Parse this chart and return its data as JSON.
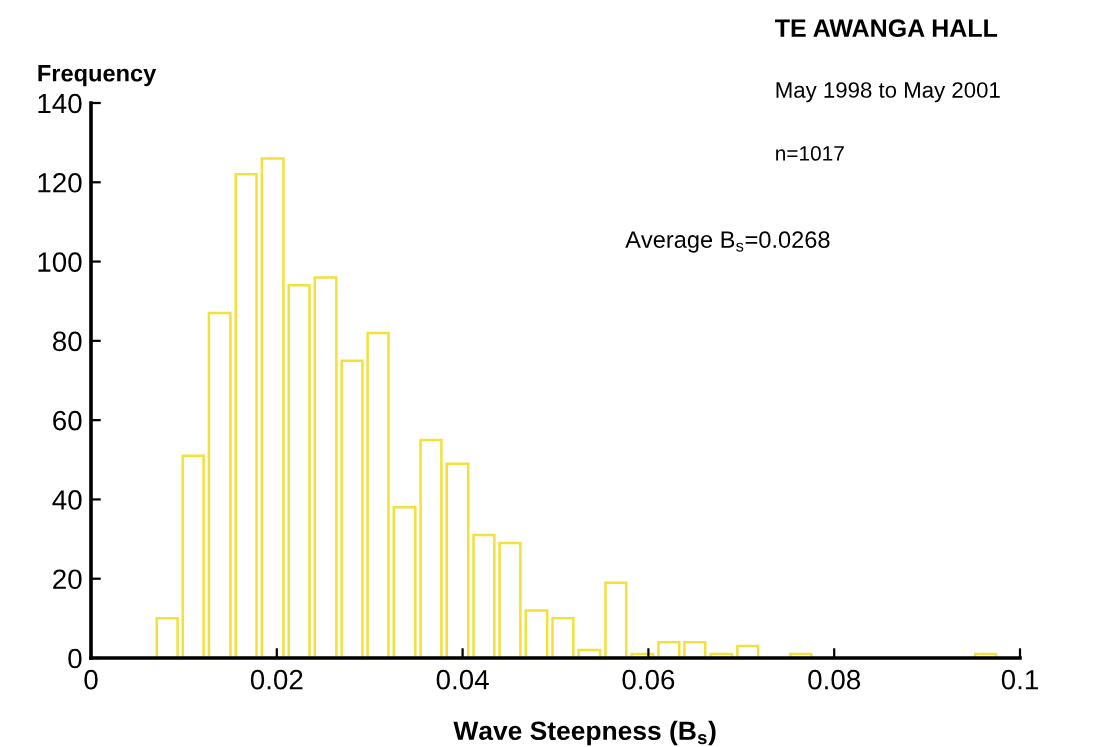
{
  "chart_data": {
    "type": "histogram",
    "title": "TE AWANGA HALL",
    "subtitle": "May 1998 to May 2001",
    "xlabel": "Wave Steepness (B$_{s}$)",
    "ylabel": "Frequency",
    "annotations": [
      "n=1017",
      "Average B$_{s}$=0.0268"
    ],
    "bins": [
      0.0068,
      0.0096,
      0.0124,
      0.0153,
      0.0181,
      0.021,
      0.0238,
      0.0267,
      0.0295,
      0.0323,
      0.0352,
      0.038,
      0.0409,
      0.0437,
      0.0465,
      0.0494,
      0.0522,
      0.0551,
      0.0579,
      0.0608,
      0.0636,
      0.0664,
      0.0693,
      0.0721,
      0.075,
      0.0778,
      0.0949,
      0.0977
    ],
    "values": [
      10,
      51,
      87,
      122,
      126,
      94,
      96,
      75,
      82,
      38,
      55,
      49,
      31,
      29,
      12,
      10,
      2,
      19,
      1,
      4,
      4,
      1,
      3,
      0,
      1,
      0,
      1
    ],
    "color": "#f2e13a",
    "xlim": [
      0,
      0.1
    ],
    "xticks": [
      0,
      0.02,
      0.04,
      0.06,
      0.08,
      0.1
    ],
    "ylim": [
      0,
      140
    ],
    "yticks": [
      0,
      20,
      40,
      60,
      80,
      100,
      120,
      140
    ]
  }
}
